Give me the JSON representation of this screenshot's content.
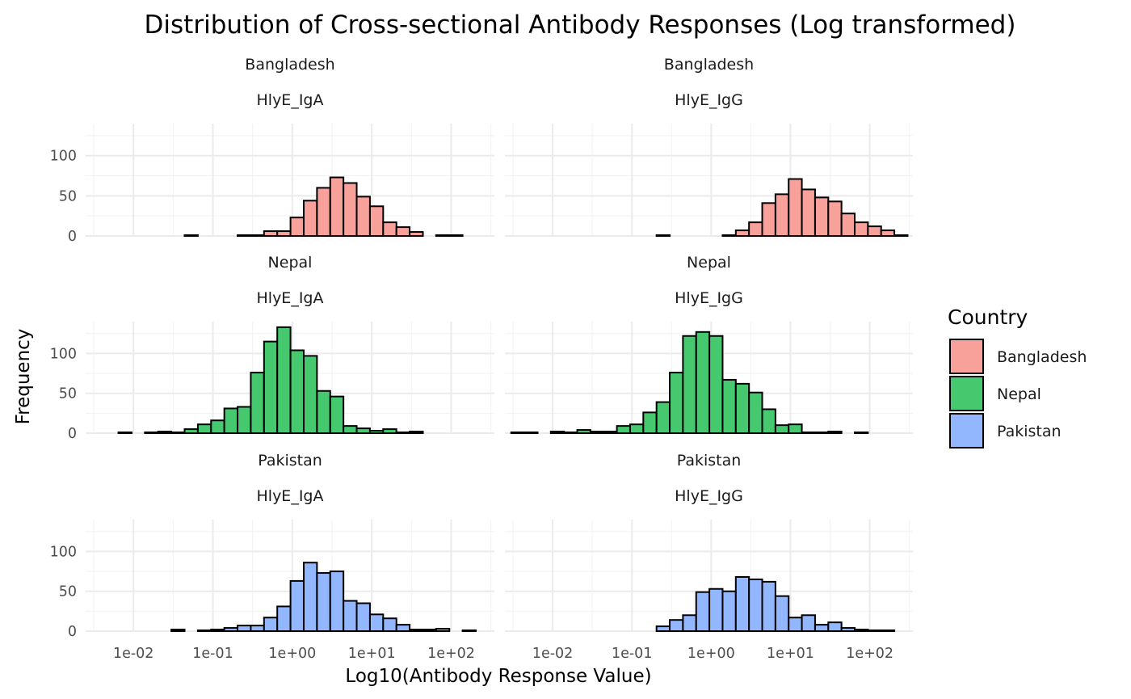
{
  "chart_data": {
    "type": "bar",
    "title": "Distribution of Cross-sectional Antibody Responses (Log transformed)",
    "xlabel": "Log10(Antibody Response Value)",
    "ylabel": "Frequency",
    "x_scale": "log10",
    "xlim": [
      0.0025,
      350
    ],
    "ylim": [
      0,
      140
    ],
    "x_ticks": [
      0.01,
      0.1,
      1,
      10,
      100
    ],
    "x_tick_labels": [
      "1e-02",
      "1e-01",
      "1e+00",
      "1e+01",
      "1e+02"
    ],
    "y_ticks": [
      0,
      50,
      100
    ],
    "y_tick_labels": [
      "0",
      "50",
      "100"
    ],
    "grid": true,
    "legend": {
      "title": "Country",
      "placement": "right",
      "entries": [
        {
          "label": "Bangladesh",
          "color": "#F8A09A"
        },
        {
          "label": "Nepal",
          "color": "#46C86E"
        },
        {
          "label": "Pakistan",
          "color": "#93B7FE"
        }
      ]
    },
    "bin_count": 30,
    "panels": [
      {
        "row": 0,
        "col": 0,
        "country": "Bangladesh",
        "antigen": "HlyE_IgA",
        "range": [
          0.003,
          300
        ],
        "values": [
          0,
          0,
          0,
          0,
          0,
          0,
          0,
          1,
          0,
          0,
          0,
          1,
          1,
          6,
          6,
          23,
          44,
          60,
          73,
          66,
          49,
          37,
          17,
          11,
          5,
          0,
          1,
          1,
          0,
          0
        ]
      },
      {
        "row": 0,
        "col": 1,
        "country": "Bangladesh",
        "antigen": "HlyE_IgG",
        "range": [
          0.003,
          300
        ],
        "values": [
          0,
          0,
          0,
          0,
          0,
          0,
          0,
          0,
          0,
          0,
          0,
          1,
          0,
          0,
          0,
          0,
          1,
          7,
          17,
          41,
          52,
          71,
          58,
          48,
          43,
          28,
          17,
          12,
          7,
          1
        ]
      },
      {
        "row": 1,
        "col": 0,
        "country": "Nepal",
        "antigen": "HlyE_IgA",
        "range": [
          0.003,
          300
        ],
        "values": [
          0,
          0,
          1,
          0,
          1,
          2,
          1,
          5,
          11,
          16,
          31,
          33,
          76,
          115,
          133,
          104,
          97,
          53,
          46,
          9,
          6,
          3,
          5,
          1,
          2,
          0,
          0,
          0,
          0,
          0
        ]
      },
      {
        "row": 1,
        "col": 1,
        "country": "Nepal",
        "antigen": "HlyE_IgG",
        "range": [
          0.003,
          300
        ],
        "values": [
          1,
          1,
          0,
          2,
          1,
          4,
          2,
          2,
          9,
          11,
          26,
          39,
          76,
          122,
          127,
          122,
          67,
          62,
          51,
          30,
          10,
          11,
          1,
          1,
          2,
          0,
          1,
          0,
          0,
          0
        ]
      },
      {
        "row": 2,
        "col": 0,
        "country": "Pakistan",
        "antigen": "HlyE_IgA",
        "range": [
          0.003,
          300
        ],
        "values": [
          0,
          0,
          0,
          0,
          0,
          0,
          2,
          0,
          1,
          2,
          4,
          7,
          7,
          17,
          31,
          63,
          86,
          73,
          75,
          38,
          35,
          21,
          16,
          8,
          2,
          2,
          3,
          0,
          1,
          0
        ]
      },
      {
        "row": 2,
        "col": 1,
        "country": "Pakistan",
        "antigen": "HlyE_IgG",
        "range": [
          0.003,
          300
        ],
        "values": [
          0,
          0,
          0,
          0,
          0,
          0,
          0,
          0,
          0,
          0,
          0,
          6,
          14,
          20,
          49,
          53,
          50,
          68,
          65,
          62,
          44,
          17,
          20,
          8,
          11,
          4,
          2,
          1,
          1,
          0
        ]
      }
    ]
  }
}
